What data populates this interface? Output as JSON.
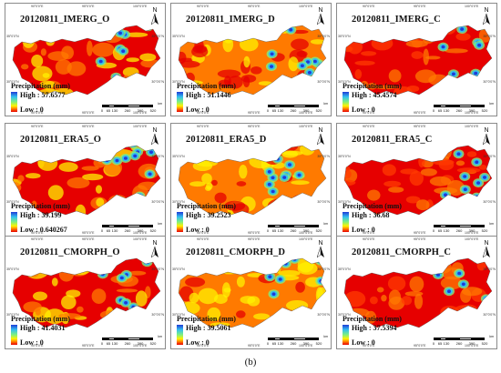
{
  "figure": {
    "caption": "(b)",
    "legend_title": "Precipitation (mm)",
    "high_prefix": "High : ",
    "low_label": "Low : 0",
    "scale_ticks": [
      "0",
      "65",
      "130",
      "260",
      "390",
      "520"
    ],
    "scale_unit": "km",
    "north_label": "N",
    "lon_labels": [
      "90°0'0\"E",
      "95°0'0\"E",
      "100°0'0\"E"
    ],
    "lat_labels": [
      "35°0'0\"N",
      "30°0'0\"N"
    ],
    "colors": {
      "high": "#1f3bd6",
      "mid_high": "#33c0f0",
      "mid": "#7ff07f",
      "mid_low": "#fff200",
      "low_mid": "#ff7a00",
      "low": "#e60000"
    },
    "panels": [
      {
        "title": "20120811_IMERG_O",
        "high": "57.6577",
        "low": "0"
      },
      {
        "title": "20120811_IMERG_D",
        "high": "51.1446",
        "low": "0"
      },
      {
        "title": "20120811_IMERG_C",
        "high": "45.4574",
        "low": "0"
      },
      {
        "title": "20120811_ERA5_O",
        "high": "39.199",
        "low": "0.640267"
      },
      {
        "title": "20120811_ERA5_D",
        "high": "39.2523",
        "low": "0"
      },
      {
        "title": "20120811_ERA5_C",
        "high": "36.68",
        "low": "0"
      },
      {
        "title": "20120811_CMORPH_O",
        "high": "41.4031",
        "low": "0"
      },
      {
        "title": "20120811_CMORPH_D",
        "high": "39.5061",
        "low": "0"
      },
      {
        "title": "20120811_CMORPH_C",
        "high": "37.5394",
        "low": "0"
      }
    ]
  }
}
